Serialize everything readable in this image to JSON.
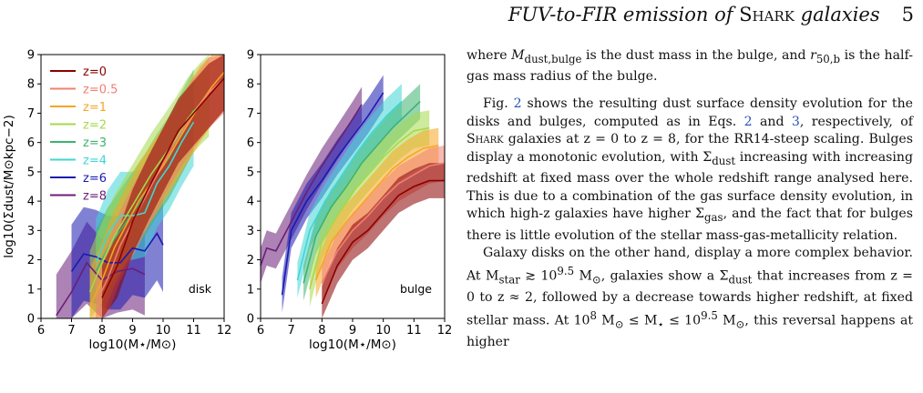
{
  "header": {
    "title_pre": "FUV-to-FIR emission of ",
    "title_sc": "Shark",
    "title_post": " galaxies",
    "page_number": "5"
  },
  "text": {
    "p1a": "where ",
    "p1_sym1": "M",
    "p1_sub1": "dust,bulge",
    "p1b": " is the dust mass in the bulge, and ",
    "p1_sym2": "r",
    "p1_sub2": "50,b",
    "p1c": " is the half-gas mass radius of the bulge.",
    "p2a": "Fig. ",
    "p2_ref1": "2",
    "p2b": " shows the resulting dust surface density evolution for the disks and bulges, computed as in Eqs. ",
    "p2_ref2": "2",
    "p2c": " and ",
    "p2_ref3": "3",
    "p2d": ", respectively, of ",
    "p2_sc": "Shark",
    "p2e": " galaxies at z = 0 to z = 8, for the RR14-steep scaling. Bulges display a monotonic evolution, with Σ",
    "p2_sub1": "dust",
    "p2f": " increasing with increasing redshift at fixed mass over the whole redshift range analysed here. This is due to a combination of the gas surface density evolution, in which high-z galaxies have higher Σ",
    "p2_sub2": "gas",
    "p2g": ", and the fact that for bulges there is little evolution of the stellar mass-gas-metallicity relation.",
    "p3a": "Galaxy disks on the other hand, display a more complex behavior. At M",
    "p3_sub1": "star",
    "p3b": " ≳ 10",
    "p3_sup1": "9.5",
    "p3c": " M",
    "p3_sub2": "⊙",
    "p3d": ", galaxies show a Σ",
    "p3_sub3": "dust",
    "p3e": " that increases from z = 0 to z ≈ 2, followed by a decrease towards higher redshift, at fixed stellar mass. At 10",
    "p3_sup2": "8",
    "p3f": " M",
    "p3_sub4": "⊙",
    "p3g": " ≤ M",
    "p3_sub5": "⋆",
    "p3h": " ≤ 10",
    "p3_sup3": "9.5",
    "p3i": " M",
    "p3_sub6": "⊙",
    "p3j": ", this reversal happens at higher"
  },
  "chart_data": [
    {
      "type": "line",
      "panel_label": "disk",
      "xlabel": "log10(M⋆/M⊙)",
      "ylabel": "log10(Σdust/M⊙kpc−2)",
      "xlim": [
        6,
        12
      ],
      "ylim": [
        0,
        9
      ],
      "xticks": [
        "6",
        "7",
        "8",
        "9",
        "10",
        "11",
        "12"
      ],
      "yticks": [
        "0",
        "1",
        "2",
        "3",
        "4",
        "5",
        "6",
        "7",
        "8",
        "9"
      ],
      "legend": "top-left",
      "series": [
        {
          "name": "z=0",
          "color": "#8b0000",
          "x": [
            8,
            8.5,
            9,
            9.5,
            10,
            10.5,
            11,
            11.5,
            12
          ],
          "y": [
            0.7,
            1.8,
            3.3,
            4.4,
            5.4,
            6.4,
            7.0,
            7.6,
            8.2
          ],
          "band": 1.1
        },
        {
          "name": "z=0.5",
          "color": "#f08070",
          "x": [
            7.8,
            8.2,
            8.6,
            9,
            9.5,
            10,
            10.5,
            11,
            11.5,
            12
          ],
          "y": [
            0.5,
            1.4,
            2.5,
            3.3,
            4.3,
            5.3,
            6.2,
            7.0,
            7.7,
            8.2
          ],
          "band": 1.2
        },
        {
          "name": "z=1",
          "color": "#f5a623",
          "x": [
            7.6,
            8,
            8.4,
            8.8,
            9.2,
            9.6,
            10,
            10.4,
            10.8,
            11.2,
            11.6,
            12
          ],
          "y": [
            0.4,
            1.3,
            2.4,
            3.2,
            4.0,
            4.6,
            5.2,
            5.9,
            6.6,
            7.3,
            7.9,
            8.4
          ],
          "band": 1.3
        },
        {
          "name": "z=2",
          "color": "#a6d84a",
          "x": [
            7.6,
            8,
            8.4,
            8.8,
            9.2,
            9.6,
            10,
            10.4,
            10.8,
            11.2,
            11.5
          ],
          "y": [
            0.9,
            1.9,
            2.8,
            3.5,
            4.2,
            4.9,
            5.5,
            6.1,
            6.8,
            7.3,
            7.6
          ],
          "band": 1.4
        },
        {
          "name": "z=3",
          "color": "#3cb371",
          "x": [
            7.8,
            8.2,
            8.6,
            9,
            9.4,
            9.8,
            10.2,
            10.6,
            11
          ],
          "y": [
            1.6,
            2.4,
            3.0,
            3.6,
            4.2,
            4.9,
            5.5,
            6.3,
            7.1
          ],
          "band": 1.4
        },
        {
          "name": "z=4",
          "color": "#40d6d6",
          "x": [
            7.8,
            8.2,
            8.6,
            9,
            9.4,
            9.8,
            10.2,
            10.6,
            11
          ],
          "y": [
            1.9,
            2.9,
            3.5,
            3.5,
            3.6,
            4.6,
            5.2,
            6.0,
            6.7
          ],
          "band": 1.5
        },
        {
          "name": "z=6",
          "color": "#1a1ab0",
          "x": [
            7,
            7.4,
            7.8,
            8.2,
            8.6,
            9,
            9.4,
            9.8,
            10
          ],
          "y": [
            1.6,
            2.2,
            2.1,
            1.9,
            1.9,
            2.4,
            2.3,
            2.9,
            2.5
          ],
          "band": 1.6
        },
        {
          "name": "z=8",
          "color": "#6a1e78",
          "x": [
            6.5,
            7,
            7.5,
            8,
            8.5,
            9,
            9.4
          ],
          "y": [
            0.1,
            0.9,
            1.9,
            1.3,
            1.6,
            1.7,
            1.5
          ],
          "band": 1.4
        }
      ]
    },
    {
      "type": "line",
      "panel_label": "bulge",
      "xlabel": "log10(M⋆/M⊙)",
      "ylabel": "",
      "xlim": [
        6,
        12
      ],
      "ylim": [
        0,
        9
      ],
      "xticks": [
        "6",
        "7",
        "8",
        "9",
        "10",
        "11",
        "12"
      ],
      "yticks": [
        "0",
        "1",
        "2",
        "3",
        "4",
        "5",
        "6",
        "7",
        "8",
        "9"
      ],
      "series": [
        {
          "name": "z=0",
          "color": "#8b0000",
          "x": [
            8,
            8.5,
            9,
            9.5,
            10,
            10.5,
            11,
            11.5,
            12
          ],
          "y": [
            0.5,
            1.8,
            2.6,
            3.0,
            3.6,
            4.2,
            4.5,
            4.7,
            4.7
          ],
          "band": 0.6
        },
        {
          "name": "z=0.5",
          "color": "#f08070",
          "x": [
            8,
            8.5,
            9,
            9.5,
            10,
            10.5,
            11,
            11.5,
            12
          ],
          "y": [
            1.2,
            2.3,
            3.0,
            3.5,
            4.1,
            4.6,
            4.9,
            5.2,
            5.3
          ],
          "band": 0.6
        },
        {
          "name": "z=1",
          "color": "#f5a623",
          "x": [
            7.8,
            8.3,
            8.8,
            9.3,
            9.8,
            10.3,
            10.8,
            11.3,
            11.8
          ],
          "y": [
            1.3,
            2.6,
            3.3,
            3.9,
            4.5,
            5.1,
            5.5,
            5.8,
            5.9
          ],
          "band": 0.6
        },
        {
          "name": "z=2",
          "color": "#a6d84a",
          "x": [
            7.6,
            8,
            8.5,
            9,
            9.5,
            10,
            10.5,
            11,
            11.5
          ],
          "y": [
            1.0,
            2.6,
            3.5,
            4.3,
            4.9,
            5.5,
            6.0,
            6.4,
            6.5
          ],
          "band": 0.6
        },
        {
          "name": "z=3",
          "color": "#3cb371",
          "x": [
            7.4,
            7.8,
            8.3,
            8.8,
            9.3,
            9.8,
            10.3,
            10.8,
            11.2
          ],
          "y": [
            1.2,
            2.8,
            3.8,
            4.5,
            5.3,
            5.9,
            6.5,
            7.0,
            7.4
          ],
          "band": 0.6
        },
        {
          "name": "z=4",
          "color": "#40d6d6",
          "x": [
            7.2,
            7.6,
            8.1,
            8.6,
            9.1,
            9.6,
            10.1,
            10.6
          ],
          "y": [
            1.3,
            3.0,
            4.0,
            4.8,
            5.6,
            6.3,
            6.9,
            7.4
          ],
          "band": 0.6
        },
        {
          "name": "z=6",
          "color": "#1a1ab0",
          "x": [
            6.7,
            7,
            7.5,
            8,
            8.5,
            9,
            9.5,
            10
          ],
          "y": [
            0.8,
            3.0,
            4.0,
            4.7,
            5.5,
            6.2,
            6.9,
            7.7
          ],
          "band": 0.6
        },
        {
          "name": "z=8",
          "color": "#6a1e78",
          "x": [
            6,
            6.2,
            6.5,
            7,
            7.5,
            8,
            8.5,
            9,
            9.3
          ],
          "y": [
            1.8,
            2.4,
            2.3,
            3.3,
            4.3,
            5.2,
            6.0,
            6.8,
            7.3
          ],
          "band": 0.6
        }
      ]
    }
  ]
}
